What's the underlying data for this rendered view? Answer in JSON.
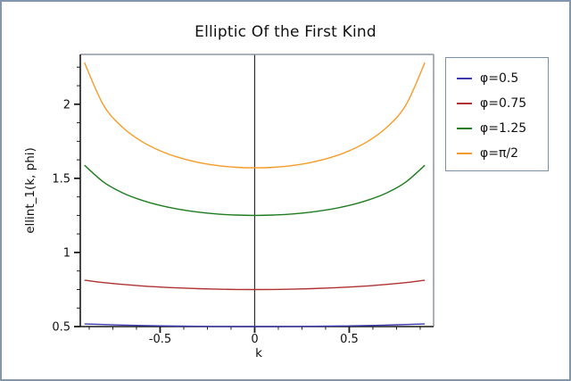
{
  "figure": {
    "background": "#ffffff",
    "border_color": "#8496ad"
  },
  "chart_data": {
    "type": "line",
    "title": "Elliptic Of the First Kind",
    "xlabel": "k",
    "ylabel": "ellint_1(k, phi)",
    "xlim": [
      -0.922,
      0.946
    ],
    "ylim": [
      0.5,
      2.336
    ],
    "x_major_ticks": [
      -0.5,
      0,
      0.5
    ],
    "x_tick_labels": [
      "-0.5",
      "0",
      "0.5"
    ],
    "y_major_ticks": [
      0.5,
      1,
      1.5,
      2
    ],
    "y_tick_labels": [
      "0.5",
      "1",
      "1.5",
      "2"
    ],
    "minor_tick_step": 0.125,
    "grid": false,
    "zero_line_x": 0,
    "legend_position": "outside-top-right",
    "axis_color": "#1a1a1a",
    "frame_color": "#8d97a5",
    "x": [
      -0.9,
      -0.8,
      -0.7,
      -0.6,
      -0.5,
      -0.4,
      -0.3,
      -0.2,
      -0.1,
      0,
      0.1,
      0.2,
      0.3,
      0.4,
      0.5,
      0.6,
      0.7,
      0.8,
      0.9
    ],
    "series": [
      {
        "name": "φ=0.5",
        "color": "#3a3ab0",
        "values": [
          0.5176,
          0.5141,
          0.5105,
          0.5074,
          0.5051,
          0.5032,
          0.5018,
          0.5008,
          0.5002,
          0.5,
          0.5002,
          0.5008,
          0.5018,
          0.5032,
          0.5051,
          0.5074,
          0.5105,
          0.5141,
          0.5176
        ]
      },
      {
        "name": "φ=0.75",
        "color": "#b03232",
        "values": [
          0.8126,
          0.797,
          0.7846,
          0.7746,
          0.7666,
          0.7604,
          0.7558,
          0.7525,
          0.7506,
          0.75,
          0.7506,
          0.7525,
          0.7558,
          0.7604,
          0.7666,
          0.7746,
          0.7846,
          0.797,
          0.8126
        ]
      },
      {
        "name": "φ=1.25",
        "color": "#1e7d1e",
        "values": [
          1.5885,
          1.476,
          1.4032,
          1.3534,
          1.3174,
          1.2911,
          1.2723,
          1.2596,
          1.2524,
          1.25,
          1.2524,
          1.2596,
          1.2723,
          1.2911,
          1.3174,
          1.3534,
          1.4032,
          1.476,
          1.5885
        ]
      },
      {
        "name": "φ=π/2",
        "color": "#f79b28",
        "values": [
          2.2805,
          1.9953,
          1.8457,
          1.7508,
          1.6858,
          1.64,
          1.608,
          1.5869,
          1.5747,
          1.5708,
          1.5747,
          1.5869,
          1.608,
          1.64,
          1.6858,
          1.7508,
          1.8457,
          1.9953,
          2.2805
        ]
      }
    ]
  }
}
